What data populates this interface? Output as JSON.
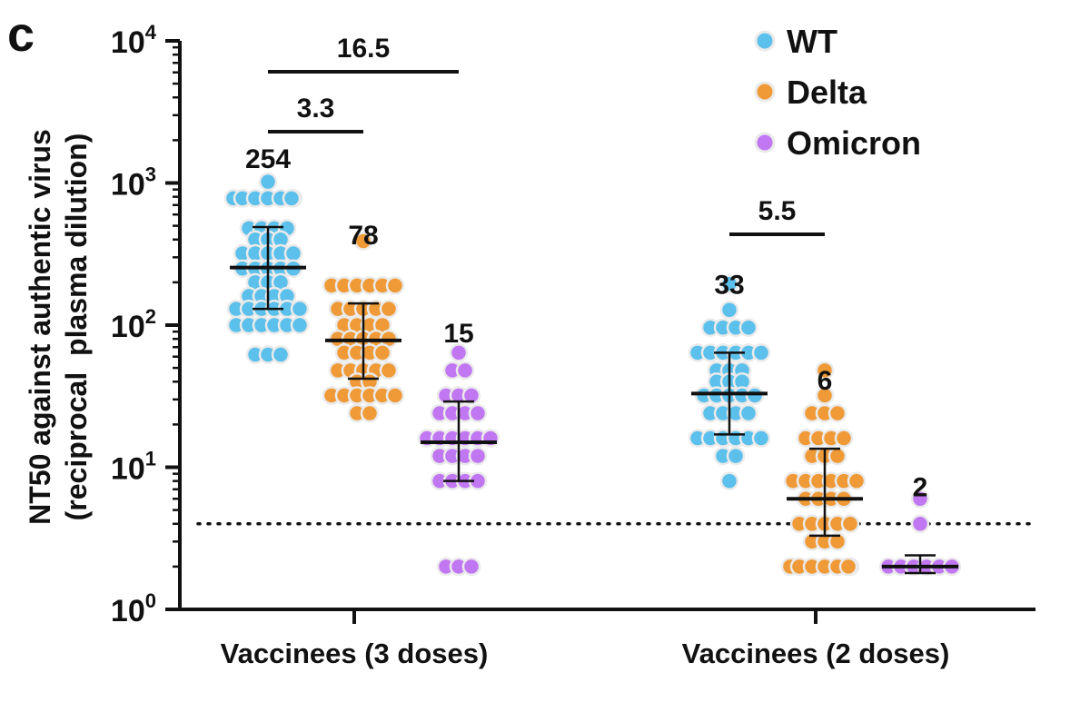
{
  "panel_label": "c",
  "chart_data": {
    "type": "scatter",
    "ylabel_line1": "NT50 against authentic virus",
    "ylabel_line2": "(reciprocal  plasma dilution)",
    "yscale": "log",
    "ylim": [
      1,
      10000
    ],
    "yticks": [
      {
        "value": 1,
        "base": "10",
        "exp": "0"
      },
      {
        "value": 10,
        "base": "10",
        "exp": "1"
      },
      {
        "value": 100,
        "base": "10",
        "exp": "2"
      },
      {
        "value": 1000,
        "base": "10",
        "exp": "3"
      },
      {
        "value": 10000,
        "base": "10",
        "exp": "4"
      }
    ],
    "categories": [
      "Vaccinees (3 doses)",
      "Vaccinees (2 doses)"
    ],
    "detection_limit": 4,
    "legend": {
      "position": "top-right"
    },
    "series": [
      {
        "name": "WT",
        "color": "#5bc0eb",
        "medians": [
          254,
          33
        ],
        "values": [
          [
            1020,
            780,
            780,
            780,
            780,
            780,
            780,
            780,
            480,
            480,
            480,
            480,
            400,
            400,
            400,
            320,
            320,
            320,
            320,
            320,
            250,
            250,
            250,
            250,
            250,
            200,
            200,
            200,
            160,
            160,
            160,
            160,
            130,
            130,
            130,
            130,
            130,
            130,
            100,
            100,
            100,
            100,
            100,
            100,
            62,
            62,
            62
          ],
          [
            195,
            128,
            96,
            96,
            96,
            96,
            64,
            64,
            64,
            64,
            64,
            64,
            48,
            48,
            48,
            40,
            40,
            40,
            32,
            32,
            32,
            32,
            32,
            24,
            24,
            24,
            24,
            16,
            16,
            16,
            16,
            16,
            16,
            12,
            12,
            8
          ]
        ]
      },
      {
        "name": "Delta",
        "color": "#ef9a36",
        "medians": [
          78,
          6
        ],
        "values": [
          [
            390,
            190,
            190,
            190,
            190,
            190,
            190,
            130,
            130,
            130,
            130,
            130,
            100,
            100,
            100,
            100,
            80,
            80,
            80,
            80,
            80,
            64,
            64,
            64,
            64,
            48,
            48,
            48,
            48,
            48,
            40,
            40,
            32,
            32,
            32,
            32,
            32,
            32,
            24,
            24
          ],
          [
            48,
            32,
            24,
            24,
            24,
            16,
            16,
            16,
            16,
            12,
            12,
            12,
            8,
            8,
            8,
            8,
            8,
            8,
            6,
            6,
            6,
            6,
            4,
            4,
            4,
            4,
            4,
            3,
            3,
            3,
            2,
            2,
            2,
            2,
            2,
            2,
            2
          ]
        ]
      },
      {
        "name": "Omicron",
        "color": "#c176f2",
        "medians": [
          15,
          2
        ],
        "values": [
          [
            64,
            48,
            48,
            32,
            32,
            32,
            24,
            24,
            24,
            24,
            16,
            16,
            16,
            16,
            16,
            16,
            12,
            12,
            12,
            12,
            8,
            8,
            8,
            8,
            2,
            2,
            2
          ],
          [
            6,
            4,
            2,
            2,
            2,
            2,
            2,
            2
          ]
        ]
      }
    ],
    "error_bars": {
      "WT": [
        [
          130,
          490
        ],
        [
          17,
          64
        ]
      ],
      "Delta": [
        [
          42,
          142
        ],
        [
          3.3,
          13.5
        ]
      ],
      "Omicron": [
        [
          8,
          29
        ],
        [
          1.8,
          2.4
        ]
      ]
    },
    "median_labels": {
      "WT": [
        "254",
        "33"
      ],
      "Delta": [
        "78",
        "6"
      ],
      "Omicron": [
        "15",
        "2"
      ]
    },
    "fold_annotations": [
      {
        "label": "16.5",
        "group": 0,
        "from": "WT",
        "to": "Omicron"
      },
      {
        "label": "3.3",
        "group": 0,
        "from": "WT",
        "to": "Delta"
      },
      {
        "label": "5.5",
        "group": 1,
        "from": "WT",
        "to": "Delta"
      }
    ]
  }
}
